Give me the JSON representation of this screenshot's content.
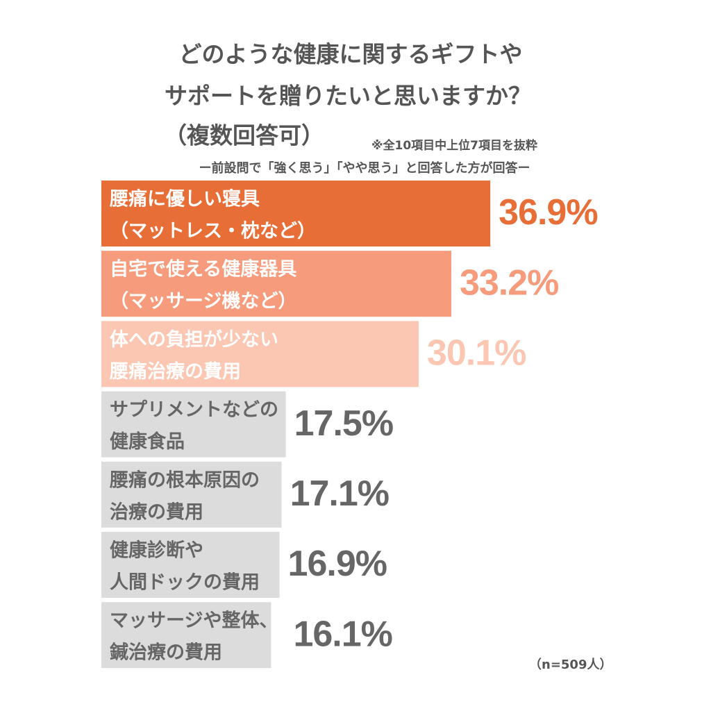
{
  "chart_data": {
    "type": "hbar",
    "title_lines": [
      "どのような健康に関するギフトや",
      "サポートを贈りたいと思いますか？",
      "（複数回答可）"
    ],
    "note": "※全10項目中上位7項目を抜粋",
    "subtitle": "ー前設問で「強く思う」「やや思う」と回答した方が回答ー",
    "footnote": "（n=509人）",
    "categories": [
      [
        "腰痛に優しい寝具",
        "（マットレス・枕など）"
      ],
      [
        "自宅で使える健康器具",
        "（マッサージ機など）"
      ],
      [
        "体への負担が少ない",
        "腰痛治療の費用"
      ],
      [
        "サプリメントなどの",
        "健康食品"
      ],
      [
        "腰痛の根本原因の",
        "治療の費用"
      ],
      [
        "健康診断や",
        "人間ドックの費用"
      ],
      [
        "マッサージや整体、",
        "鍼治療の費用"
      ]
    ],
    "values": [
      36.9,
      33.2,
      30.1,
      17.5,
      17.1,
      16.9,
      16.1
    ],
    "value_labels": [
      "36.9%",
      "33.2%",
      "30.1%",
      "17.5%",
      "17.1%",
      "16.9%",
      "16.1%"
    ],
    "colors": [
      "#e86e38",
      "#f69b7b",
      "#fbc6b2",
      "#dcdcdc",
      "#dcdcdc",
      "#dcdcdc",
      "#dcdcdc"
    ],
    "category_text_colors": [
      "#ffffff",
      "#ffffff",
      "#ffffff",
      "#666666",
      "#666666",
      "#666666",
      "#666666"
    ],
    "value_label_colors": [
      "#e86e38",
      "#f69b7b",
      "#fbc6b2",
      "#666666",
      "#666666",
      "#666666",
      "#666666"
    ]
  }
}
